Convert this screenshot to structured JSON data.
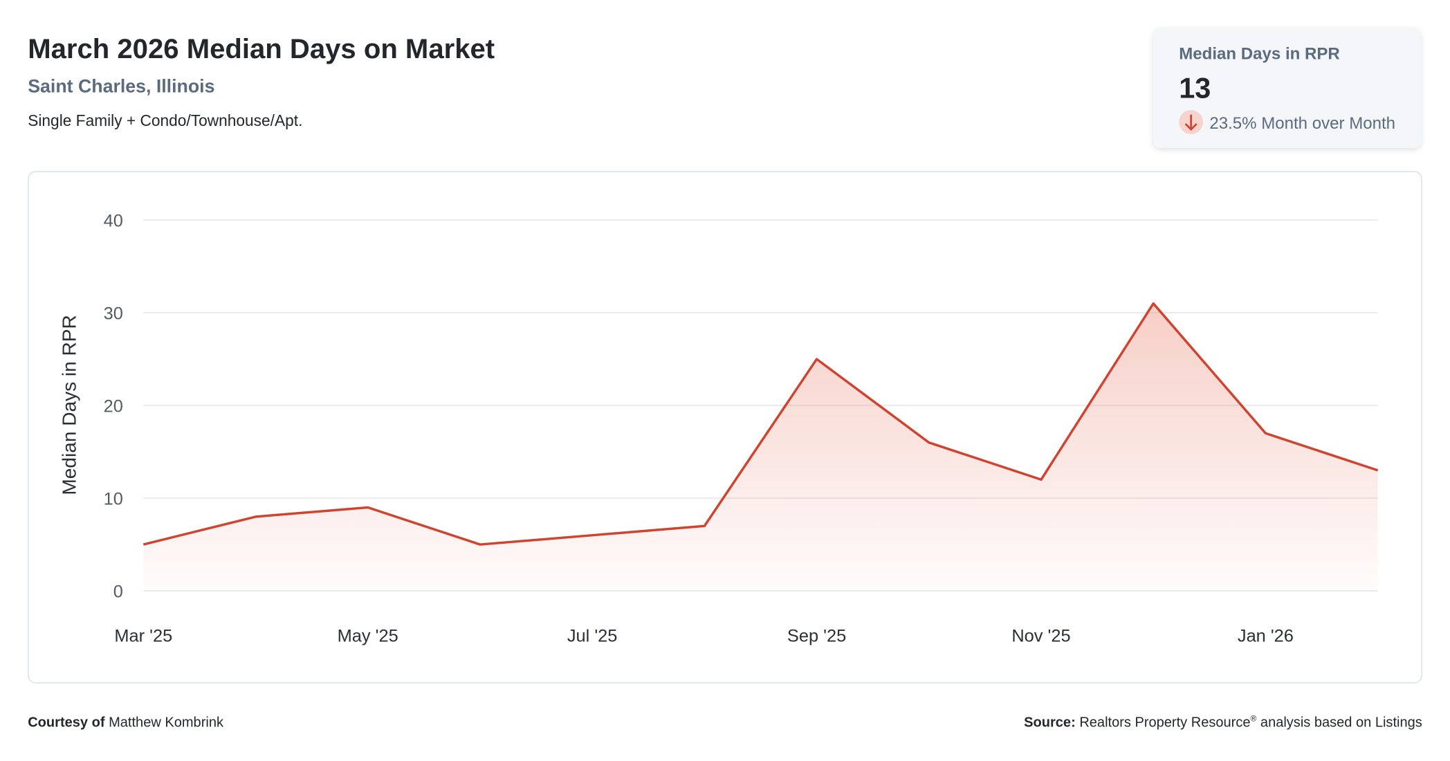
{
  "chart_data": {
    "type": "line",
    "title": "March 2026 Median Days on Market",
    "subtitle": "Saint Charles, Illinois",
    "description": "Single Family + Condo/Townhouse/Apt.",
    "ylabel": "Median Days in RPR",
    "categories": [
      "Mar '25",
      null,
      "May '25",
      null,
      "Jul '25",
      null,
      "Sep '25",
      null,
      "Nov '25",
      null,
      "Jan '26",
      null
    ],
    "series": [
      {
        "color": "#d0432f",
        "values": [
          5,
          8,
          9,
          5,
          6,
          7,
          25,
          16,
          12,
          31,
          17,
          13
        ]
      }
    ],
    "ylim": [
      0,
      40
    ],
    "yticks": [
      0,
      10,
      20,
      30,
      40
    ],
    "grid": true,
    "area": true
  },
  "kpi": {
    "label": "Median Days in RPR",
    "value": 13,
    "change": "23.5% Month over Month"
  },
  "footer": {
    "courtesy_label": "Courtesy of",
    "courtesy_name": "Matthew Kombrink",
    "source_label": "Source:",
    "source_name": "Realtors Property Resource",
    "source_mark": "®",
    "source_rest": "analysis based on Listings"
  }
}
